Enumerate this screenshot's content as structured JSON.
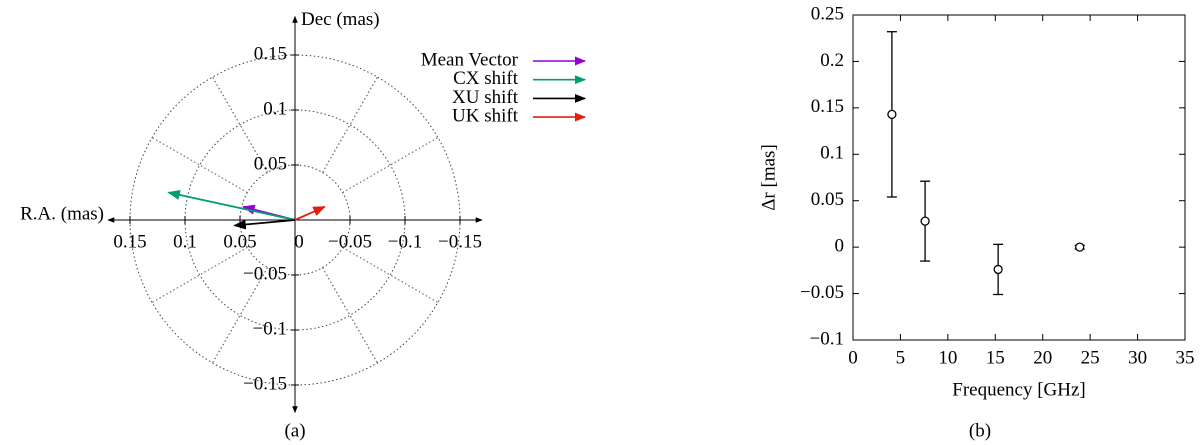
{
  "chart_data": [
    {
      "type": "vector",
      "xlabel": "R.A. (mas)",
      "ylabel": "Dec (mas)",
      "caption": "(a)",
      "xlim": [
        0.17,
        -0.17
      ],
      "ylim": [
        -0.175,
        0.185
      ],
      "xticks": [
        0.15,
        0.1,
        0.05,
        0,
        {
          "value": -0.05,
          "label": "−0.05"
        },
        {
          "value": -0.1,
          "label": "−0.1"
        },
        {
          "value": -0.15,
          "label": "−0.15"
        }
      ],
      "yticks": [
        0.15,
        0.1,
        0.05,
        {
          "value": -0.05,
          "label": "−0.05"
        },
        {
          "value": -0.1,
          "label": "−0.1"
        },
        {
          "value": -0.15,
          "label": "−0.15"
        }
      ],
      "grid": true,
      "series": [
        {
          "name": "Mean Vector",
          "color": "#9400d3",
          "x": [
            0.047
          ],
          "values": [
            0.012
          ]
        },
        {
          "name": "CX shift",
          "color": "#009e73",
          "x": [
            0.115
          ],
          "values": [
            0.025
          ]
        },
        {
          "name": "XU shift",
          "color": "#000000",
          "x": [
            0.055
          ],
          "values": [
            -0.005
          ]
        },
        {
          "name": "UK shift",
          "color": "#e51e10",
          "x": [
            -0.027
          ],
          "values": [
            0.012
          ]
        }
      ]
    },
    {
      "type": "errorbar",
      "xlabel": "Frequency [GHz]",
      "ylabel": "Δr [mas]",
      "caption": "(b)",
      "xlim": [
        0,
        35
      ],
      "ylim": [
        -0.1,
        0.25
      ],
      "xticks": [
        0,
        5,
        10,
        15,
        20,
        25,
        30,
        35
      ],
      "yticks": [
        {
          "value": -0.1,
          "label": "−0.1"
        },
        {
          "value": -0.05,
          "label": "−0.05"
        },
        0,
        0.05,
        0.1,
        0.15,
        0.2,
        0.25
      ],
      "color": "#000000",
      "x": [
        4.1,
        7.6,
        15.3,
        23.9
      ],
      "values": [
        0.143,
        0.028,
        -0.024,
        0.0
      ],
      "errors": [
        0.089,
        0.043,
        0.027,
        0.002
      ]
    }
  ]
}
